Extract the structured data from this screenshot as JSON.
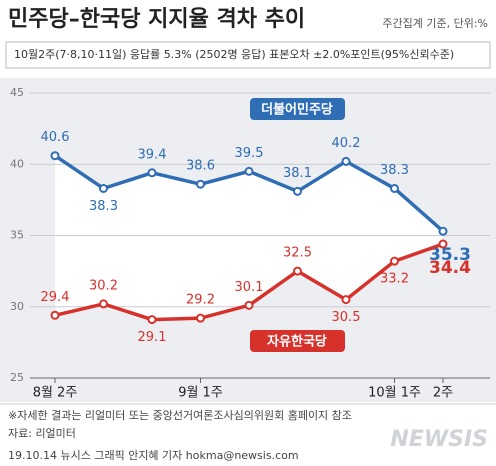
{
  "chart_data": {
    "type": "line",
    "title": "민주당–한국당 지지율 격차 추이",
    "subtitle": "주간집계 기준, 단위:%",
    "note": "10월2주(7·8,10·11일) 응답률 5.3% (2502명 응답) 표본오차 ±2.0%포인트(95%신뢰수준)",
    "categories": [
      "8월 2주",
      null,
      null,
      "9월 1주",
      null,
      null,
      null,
      "10월 1주",
      "2주"
    ],
    "series": [
      {
        "name": "더불어민주당",
        "color": "#2f6db5",
        "values": [
          40.6,
          38.3,
          39.4,
          38.6,
          39.5,
          38.1,
          40.2,
          38.3,
          35.3
        ]
      },
      {
        "name": "자유한국당",
        "color": "#d6322b",
        "values": [
          29.4,
          30.2,
          29.1,
          29.2,
          30.1,
          32.5,
          30.5,
          33.2,
          34.4
        ]
      }
    ],
    "ylim": [
      25,
      45
    ],
    "yticks": [
      25,
      30,
      35,
      40,
      45
    ],
    "grid": true,
    "footnote": "※자세한 결과는 리얼미터 또는 중앙선거여론조사심의위원회 홈페이지 참조",
    "source": "자료: 리얼미터",
    "credit": "19.10.14  뉴시스 그래픽 안지혜 기자  hokma@newsis.com",
    "logo": "NEWSIS"
  }
}
